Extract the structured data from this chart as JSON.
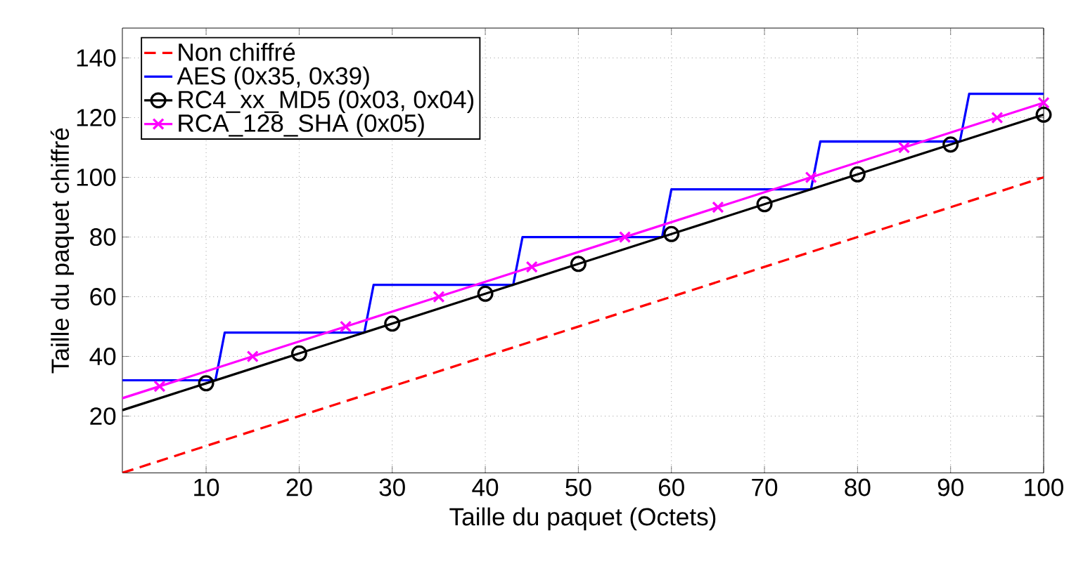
{
  "chart_data": {
    "type": "line",
    "xlabel": "Taille du paquet (Octets)",
    "ylabel": "Taille du paquet chiffré",
    "xlim": [
      1,
      100
    ],
    "ylim": [
      1,
      150
    ],
    "xticks": [
      10,
      20,
      30,
      40,
      50,
      60,
      70,
      80,
      90,
      100
    ],
    "yticks": [
      20,
      40,
      60,
      80,
      100,
      120,
      140
    ],
    "grid": true,
    "legend": "top left",
    "series": [
      {
        "name": "Non chiffré",
        "color": "#ff0000",
        "line_style": "dashed",
        "marker": "none",
        "x": [
          1,
          100
        ],
        "values": [
          1,
          100
        ]
      },
      {
        "name": "AES (0x35, 0x39)",
        "color": "#0000ff",
        "line_style": "solid",
        "marker": "none",
        "x": [
          1,
          11,
          12,
          27,
          28,
          43,
          44,
          59,
          60,
          75,
          76,
          91,
          92,
          100
        ],
        "values": [
          32,
          32,
          48,
          48,
          64,
          64,
          80,
          80,
          96,
          96,
          112,
          112,
          128,
          128
        ]
      },
      {
        "name": "RC4_xx_MD5 (0x03, 0x04)",
        "color": "#000000",
        "line_style": "solid",
        "marker": "circle",
        "x": [
          1,
          10,
          20,
          30,
          40,
          50,
          60,
          70,
          80,
          90,
          100
        ],
        "values": [
          22,
          31,
          41,
          51,
          61,
          71,
          81,
          91,
          101,
          111,
          121
        ]
      },
      {
        "name": "RCA_128_SHA (0x05)",
        "color": "#ff00ff",
        "line_style": "solid",
        "marker": "cross",
        "x": [
          1,
          5,
          15,
          25,
          35,
          45,
          55,
          65,
          75,
          85,
          95,
          100
        ],
        "values": [
          26,
          30,
          40,
          50,
          60,
          70,
          80,
          90,
          100,
          110,
          120,
          125
        ]
      }
    ]
  }
}
